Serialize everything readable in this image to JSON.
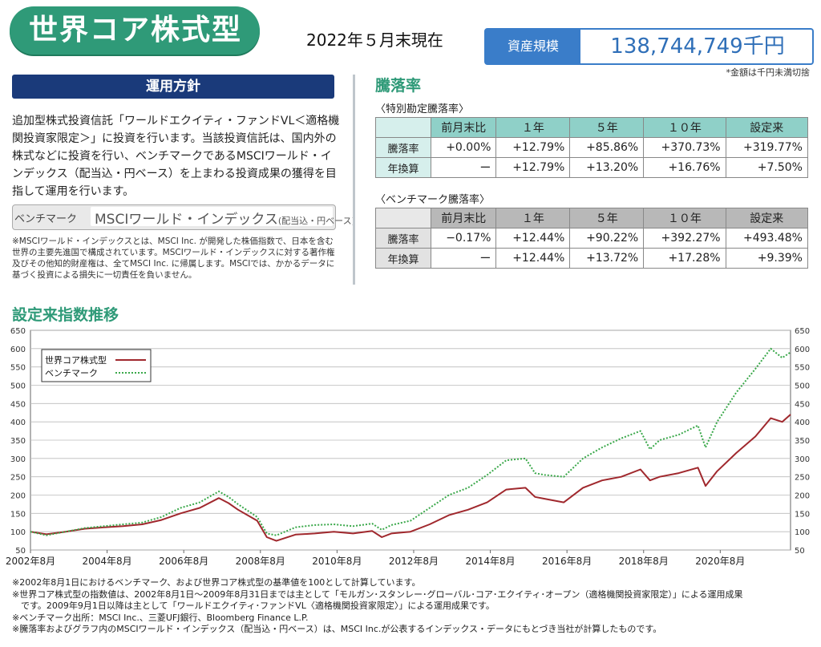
{
  "header": {
    "title": "世界コア株式型",
    "as_of": "2022年５月末現在",
    "aum_label": "資産規模",
    "aum_value": "138,744,749千円",
    "aum_note": "*金額は千円未満切捨"
  },
  "policy": {
    "heading": "運用方針",
    "text": "追加型株式投資信託「ワールドエクイティ・ファンドVL＜適格機関投資家限定＞」に投資を行います。当該投資信託は、国内外の株式などに投資を行い、ベンチマークであるMSCIワールド・インデックス（配当込・円ベース）を上まわる投資成果の獲得を目指して運用を行います。",
    "benchmark_label": "ベンチマーク",
    "benchmark_name": "MSCIワールド・インデックス",
    "benchmark_suffix": "(配当込・円ベース)",
    "benchmark_note": "※MSCIワールド・インデックスとは、MSCI Inc. が開発した株価指数で、日本を含む世界の主要先進国で構成されています。MSCIワールド・インデックスに対する著作権及びその他知的財産権は、全てMSCI Inc. に帰属します。MSCIでは、かかるデータに基づく投資による損失に一切責任を負いません。"
  },
  "returns": {
    "title": "騰落率",
    "special_subtitle": "〈特別勘定騰落率〉",
    "benchmark_subtitle": "〈ベンチマーク騰落率〉",
    "columns": [
      "前月末比",
      "１年",
      "５年",
      "１０年",
      "設定来"
    ],
    "special_rows": [
      {
        "label": "騰落率",
        "values": [
          "+0.00%",
          "+12.79%",
          "+85.86%",
          "+370.73%",
          "+319.77%"
        ]
      },
      {
        "label": "年換算",
        "values": [
          "ー",
          "+12.79%",
          "+13.20%",
          "+16.76%",
          "+7.50%"
        ]
      }
    ],
    "benchmark_rows": [
      {
        "label": "騰落率",
        "values": [
          "−0.17%",
          "+12.44%",
          "+90.22%",
          "+392.27%",
          "+493.48%"
        ]
      },
      {
        "label": "年換算",
        "values": [
          "ー",
          "+12.44%",
          "+13.72%",
          "+17.28%",
          "+9.39%"
        ]
      }
    ]
  },
  "chart_title": "設定来指数推移",
  "chart_data": {
    "type": "line",
    "title": "設定来指数推移",
    "xlabel": "",
    "ylabel": "",
    "ylim": [
      50,
      650
    ],
    "yticks": [
      50,
      100,
      150,
      200,
      250,
      300,
      350,
      400,
      450,
      500,
      550,
      600,
      650
    ],
    "xlim": [
      2002.583,
      2022.417
    ],
    "xtick_labels": [
      "2002年8月",
      "2004年8月",
      "2006年8月",
      "2008年8月",
      "2010年8月",
      "2012年8月",
      "2014年8月",
      "2016年8月",
      "2018年8月",
      "2020年8月"
    ],
    "xtick_values": [
      2002.583,
      2004.583,
      2006.583,
      2008.583,
      2010.583,
      2012.583,
      2014.583,
      2016.583,
      2018.583,
      2020.583
    ],
    "legend_position": "top-left",
    "x": [
      2002.583,
      2003.0,
      2003.5,
      2004.0,
      2004.5,
      2005.0,
      2005.5,
      2006.0,
      2006.5,
      2007.0,
      2007.5,
      2007.75,
      2008.0,
      2008.5,
      2008.75,
      2009.0,
      2009.5,
      2010.0,
      2010.5,
      2011.0,
      2011.5,
      2011.75,
      2012.0,
      2012.5,
      2013.0,
      2013.5,
      2014.0,
      2014.5,
      2015.0,
      2015.5,
      2015.75,
      2016.0,
      2016.5,
      2017.0,
      2017.5,
      2018.0,
      2018.5,
      2018.75,
      2019.0,
      2019.5,
      2020.0,
      2020.2,
      2020.5,
      2021.0,
      2021.5,
      2021.9,
      2022.2,
      2022.417
    ],
    "series": [
      {
        "name": "世界コア株式型",
        "color": "#a0282d",
        "style": "solid",
        "values": [
          100,
          93,
          100,
          108,
          112,
          115,
          120,
          132,
          150,
          165,
          192,
          178,
          160,
          130,
          85,
          75,
          92,
          95,
          100,
          95,
          102,
          85,
          95,
          100,
          120,
          145,
          160,
          180,
          215,
          220,
          195,
          190,
          180,
          220,
          240,
          250,
          270,
          240,
          250,
          260,
          275,
          225,
          265,
          315,
          360,
          410,
          400,
          420
        ]
      },
      {
        "name": "ベンチマーク",
        "color": "#3aa84a",
        "style": "dotted",
        "values": [
          100,
          90,
          100,
          110,
          115,
          120,
          125,
          140,
          165,
          180,
          210,
          195,
          175,
          140,
          95,
          90,
          112,
          118,
          120,
          115,
          122,
          105,
          118,
          130,
          165,
          200,
          220,
          255,
          295,
          300,
          260,
          255,
          250,
          300,
          330,
          355,
          375,
          325,
          350,
          365,
          390,
          330,
          400,
          480,
          545,
          600,
          575,
          590
        ]
      }
    ]
  },
  "notes": [
    "※2002年8月1日におけるベンチマーク、および世界コア株式型の基準値を100として計算しています。",
    "※世界コア株式型の指数値は、2002年8月1日〜2009年8月31日までは主として「モルガン･スタンレー･グローバル･コア･エクイティ･オープン（適格機関投資家限定）」による運用成果",
    "　です。2009年9月1日以降は主として「ワールドエクイティ･ファンドVL〈適格機関投資家限定〉」による運用成果です。",
    "※ベンチマーク出所：MSCI Inc.、三菱UFJ銀行、Bloomberg Finance L.P.",
    "※騰落率およびグラフ内のMSCIワールド・インデックス（配当込・円ベース）は、MSCI Inc.が公表するインデックス・データにもとづき当社が計算したものです。"
  ]
}
